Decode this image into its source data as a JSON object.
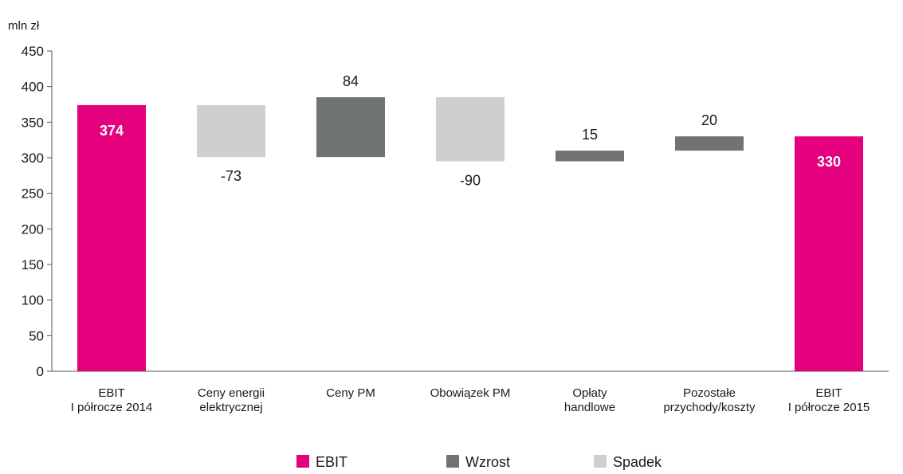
{
  "chart_data": {
    "type": "bar",
    "subtype": "waterfall",
    "ylabel": "mln zł",
    "ylim": [
      0,
      450
    ],
    "yticks": [
      0,
      50,
      100,
      150,
      200,
      250,
      300,
      350,
      400,
      450
    ],
    "grid": false,
    "legend_position": "bottom",
    "colors": {
      "EBIT": "#e5007d",
      "Wzrost": "#6f7372",
      "Spadek": "#cfcfcf"
    },
    "legend": [
      {
        "name": "EBIT",
        "key": "EBIT"
      },
      {
        "name": "Wzrost",
        "key": "Wzrost"
      },
      {
        "name": "Spadek",
        "key": "Spadek"
      }
    ],
    "bars": [
      {
        "category": [
          "EBIT",
          "I półrocze 2014"
        ],
        "kind": "EBIT",
        "start": 0,
        "end": 374,
        "label": "374"
      },
      {
        "category": [
          "Ceny energii",
          "elektrycznej"
        ],
        "kind": "Spadek",
        "start": 374,
        "end": 301,
        "label": "-73"
      },
      {
        "category": [
          "Ceny PM"
        ],
        "kind": "Wzrost",
        "start": 301,
        "end": 385,
        "label": "84"
      },
      {
        "category": [
          "Obowiązek PM"
        ],
        "kind": "Spadek",
        "start": 385,
        "end": 295,
        "label": "-90"
      },
      {
        "category": [
          "Opłaty",
          "handlowe"
        ],
        "kind": "Wzrost",
        "start": 295,
        "end": 310,
        "label": "15"
      },
      {
        "category": [
          "Pozostałe",
          "przychody/koszty"
        ],
        "kind": "Wzrost",
        "start": 310,
        "end": 330,
        "label": "20"
      },
      {
        "category": [
          "EBIT",
          "I półrocze 2015"
        ],
        "kind": "EBIT",
        "start": 0,
        "end": 330,
        "label": "330"
      }
    ]
  }
}
